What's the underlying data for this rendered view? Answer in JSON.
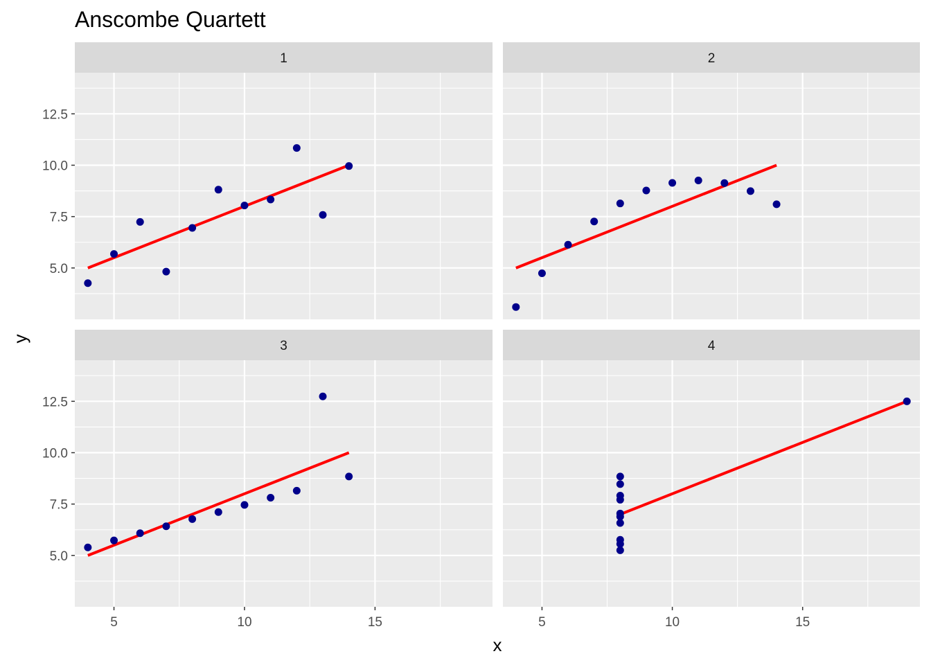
{
  "chart_data": {
    "type": "scatter",
    "title": "Anscombe Quartett",
    "xlabel": "x",
    "ylabel": "y",
    "xlim": [
      3.5,
      19.5
    ],
    "ylim": [
      2.5,
      14.5
    ],
    "x_ticks": [
      5,
      10,
      15
    ],
    "x_tick_labels": [
      "5",
      "10",
      "15"
    ],
    "y_ticks": [
      5.0,
      7.5,
      10.0,
      12.5
    ],
    "y_tick_labels": [
      "5.0",
      "7.5",
      "10.0",
      "12.5"
    ],
    "grid": true,
    "point_color": "#00008b",
    "line_color": "#ff0000",
    "panel_background": "#ebebeb",
    "strip_background": "#d9d9d9",
    "panels": [
      {
        "label": "1",
        "points": [
          [
            4,
            4.26
          ],
          [
            5,
            5.68
          ],
          [
            6,
            7.24
          ],
          [
            7,
            4.82
          ],
          [
            8,
            6.95
          ],
          [
            9,
            8.81
          ],
          [
            10,
            8.04
          ],
          [
            11,
            8.33
          ],
          [
            12,
            10.84
          ],
          [
            13,
            7.58
          ],
          [
            14,
            9.96
          ]
        ],
        "fit_line": [
          [
            4,
            5.0
          ],
          [
            14,
            10.0
          ]
        ]
      },
      {
        "label": "2",
        "points": [
          [
            4,
            3.1
          ],
          [
            5,
            4.74
          ],
          [
            6,
            6.13
          ],
          [
            7,
            7.26
          ],
          [
            8,
            8.14
          ],
          [
            9,
            8.77
          ],
          [
            10,
            9.14
          ],
          [
            11,
            9.26
          ],
          [
            12,
            9.13
          ],
          [
            13,
            8.74
          ],
          [
            14,
            8.1
          ]
        ],
        "fit_line": [
          [
            4,
            5.0
          ],
          [
            14,
            10.0
          ]
        ]
      },
      {
        "label": "3",
        "points": [
          [
            4,
            5.39
          ],
          [
            5,
            5.73
          ],
          [
            6,
            6.08
          ],
          [
            7,
            6.42
          ],
          [
            8,
            6.77
          ],
          [
            9,
            7.11
          ],
          [
            10,
            7.46
          ],
          [
            11,
            7.81
          ],
          [
            12,
            8.15
          ],
          [
            13,
            12.74
          ],
          [
            14,
            8.84
          ]
        ],
        "fit_line": [
          [
            4,
            5.0
          ],
          [
            14,
            10.0
          ]
        ]
      },
      {
        "label": "4",
        "points": [
          [
            8,
            6.58
          ],
          [
            8,
            5.76
          ],
          [
            8,
            7.71
          ],
          [
            8,
            8.84
          ],
          [
            8,
            8.47
          ],
          [
            8,
            7.04
          ],
          [
            8,
            5.25
          ],
          [
            19,
            12.5
          ],
          [
            8,
            5.56
          ],
          [
            8,
            7.91
          ],
          [
            8,
            6.89
          ]
        ],
        "fit_line": [
          [
            8,
            7.0
          ],
          [
            19,
            12.5
          ]
        ]
      }
    ]
  }
}
